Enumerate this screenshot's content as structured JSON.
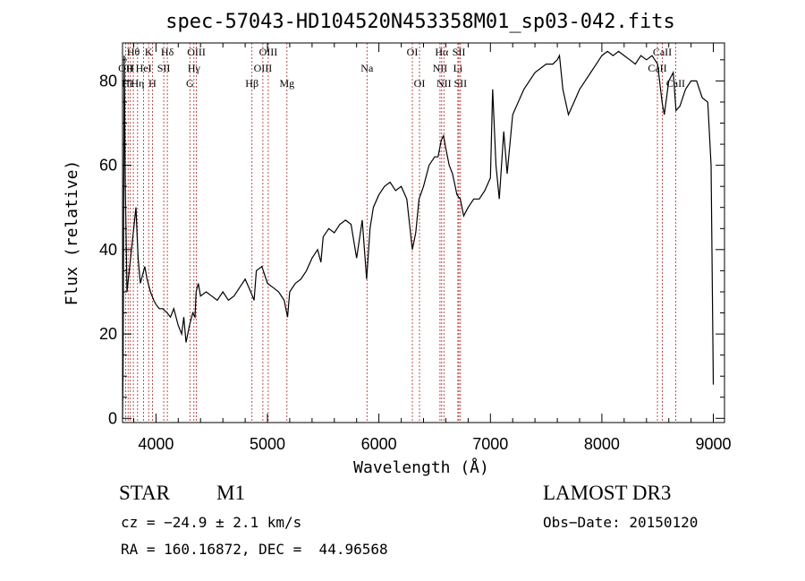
{
  "chart_data": {
    "type": "line",
    "title": "spec-57043-HD104520N453358M01_sp03-042.fits",
    "xlabel": "Wavelength (Å)",
    "ylabel": "Flux (relative)",
    "xlim": [
      3700,
      9100
    ],
    "ylim": [
      -1,
      89
    ],
    "xticks": [
      4000,
      5000,
      6000,
      7000,
      8000,
      9000
    ],
    "yticks": [
      0,
      20,
      40,
      60,
      80
    ],
    "grid": false,
    "series": [
      {
        "x": [
          3700,
          3705,
          3715,
          3725,
          3740,
          3760,
          3780,
          3800,
          3820,
          3840,
          3860,
          3880,
          3900,
          3920,
          3950,
          3980,
          4000,
          4030,
          4060,
          4100,
          4130,
          4160,
          4200,
          4230,
          4250,
          4270,
          4300,
          4330,
          4350,
          4360,
          4380,
          4400,
          4450,
          4500,
          4550,
          4600,
          4650,
          4700,
          4750,
          4800,
          4850,
          4880,
          4900,
          4950,
          5000,
          5050,
          5100,
          5150,
          5180,
          5200,
          5250,
          5300,
          5350,
          5400,
          5450,
          5480,
          5500,
          5550,
          5600,
          5650,
          5700,
          5750,
          5800,
          5850,
          5890,
          5920,
          5950,
          6000,
          6050,
          6100,
          6150,
          6200,
          6250,
          6300,
          6330,
          6360,
          6400,
          6450,
          6500,
          6530,
          6560,
          6580,
          6600,
          6630,
          6660,
          6700,
          6730,
          6760,
          6800,
          6850,
          6900,
          6950,
          7000,
          7020,
          7050,
          7080,
          7120,
          7150,
          7200,
          7300,
          7400,
          7500,
          7560,
          7600,
          7620,
          7650,
          7700,
          7750,
          7800,
          7850,
          7900,
          7950,
          8000,
          8050,
          8100,
          8150,
          8200,
          8250,
          8300,
          8350,
          8400,
          8450,
          8500,
          8540,
          8560,
          8600,
          8640,
          8665,
          8700,
          8750,
          8800,
          8850,
          8900,
          8950,
          8980,
          9000
        ],
        "y": [
          0,
          12,
          86,
          55,
          30,
          35,
          40,
          45,
          50,
          38,
          32,
          34,
          36,
          33,
          30,
          28,
          27,
          26,
          26,
          25,
          24,
          26,
          22,
          20,
          24,
          18,
          22,
          25,
          24,
          30,
          32,
          29,
          30,
          29,
          28,
          30,
          28,
          29,
          31,
          33,
          30,
          28,
          35,
          36,
          32,
          31,
          30,
          28,
          24,
          30,
          32,
          33,
          35,
          38,
          40,
          37,
          43,
          45,
          44,
          46,
          47,
          46,
          38,
          47,
          33,
          45,
          50,
          53,
          55,
          56,
          54,
          55,
          52,
          40,
          44,
          52,
          55,
          60,
          62,
          62,
          66,
          67,
          64,
          60,
          58,
          53,
          52,
          48,
          50,
          52,
          52,
          54,
          57,
          78,
          60,
          52,
          68,
          58,
          72,
          78,
          82,
          84,
          84,
          85,
          86,
          78,
          72,
          75,
          78,
          80,
          82,
          84,
          86,
          87,
          86,
          87,
          86,
          85,
          84,
          86,
          85,
          86,
          84,
          75,
          72,
          80,
          82,
          73,
          74,
          78,
          80,
          80,
          76,
          75,
          60,
          8
        ]
      }
    ],
    "line_labels": [
      {
        "text": "Hθ",
        "x": 3797,
        "row": 1
      },
      {
        "text": "K",
        "x": 3934,
        "row": 1
      },
      {
        "text": "Hδ",
        "x": 4102,
        "row": 1
      },
      {
        "text": "OIII",
        "x": 4363,
        "row": 1
      },
      {
        "text": "OIII",
        "x": 5007,
        "row": 1
      },
      {
        "text": "OI",
        "x": 6300,
        "row": 1
      },
      {
        "text": "Hα",
        "x": 6563,
        "row": 1
      },
      {
        "text": "SII",
        "x": 6717,
        "row": 1
      },
      {
        "text": "CaII",
        "x": 8542,
        "row": 1
      },
      {
        "text": "OII",
        "x": 3727,
        "row": 2
      },
      {
        "text": "H",
        "x": 3770,
        "row": 2
      },
      {
        "text": "HeI",
        "x": 3889,
        "row": 2
      },
      {
        "text": "SII",
        "x": 4070,
        "row": 2
      },
      {
        "text": "Hγ",
        "x": 4340,
        "row": 2
      },
      {
        "text": "OIII",
        "x": 4959,
        "row": 2
      },
      {
        "text": "Na",
        "x": 5893,
        "row": 2
      },
      {
        "text": "NII",
        "x": 6548,
        "row": 2
      },
      {
        "text": "Li",
        "x": 6708,
        "row": 2
      },
      {
        "text": "CaII",
        "x": 8498,
        "row": 2
      },
      {
        "text": "Hε",
        "x": 3750,
        "row": 3
      },
      {
        "text": "Hη",
        "x": 3835,
        "row": 3
      },
      {
        "text": "H",
        "x": 3968,
        "row": 3
      },
      {
        "text": "G",
        "x": 4304,
        "row": 3
      },
      {
        "text": "Hβ",
        "x": 4861,
        "row": 3
      },
      {
        "text": "Mg",
        "x": 5175,
        "row": 3
      },
      {
        "text": "OI",
        "x": 6364,
        "row": 3
      },
      {
        "text": "NII",
        "x": 6583,
        "row": 3
      },
      {
        "text": "SII",
        "x": 6731,
        "row": 3
      },
      {
        "text": "CaII",
        "x": 8662,
        "row": 3
      }
    ],
    "marker_lines_x": [
      3727,
      3750,
      3770,
      3797,
      3835,
      3889,
      3934,
      3968,
      4070,
      4102,
      4304,
      4340,
      4363,
      4861,
      4959,
      5007,
      5175,
      5893,
      6300,
      6364,
      6548,
      6563,
      6583,
      6708,
      6717,
      6731,
      8498,
      8542,
      8662
    ],
    "colors": {
      "spectrum": "#000000",
      "marker_lines": "#b22222"
    }
  },
  "info": {
    "object_class": "STAR",
    "subclass": "M1",
    "survey": "LAMOST DR3",
    "cz": "cz = −24.9 ± 2.1 km/s",
    "obs_date": "Obs−Date: 20150120",
    "coords": "RA = 160.16872, DEC =  44.96568"
  }
}
